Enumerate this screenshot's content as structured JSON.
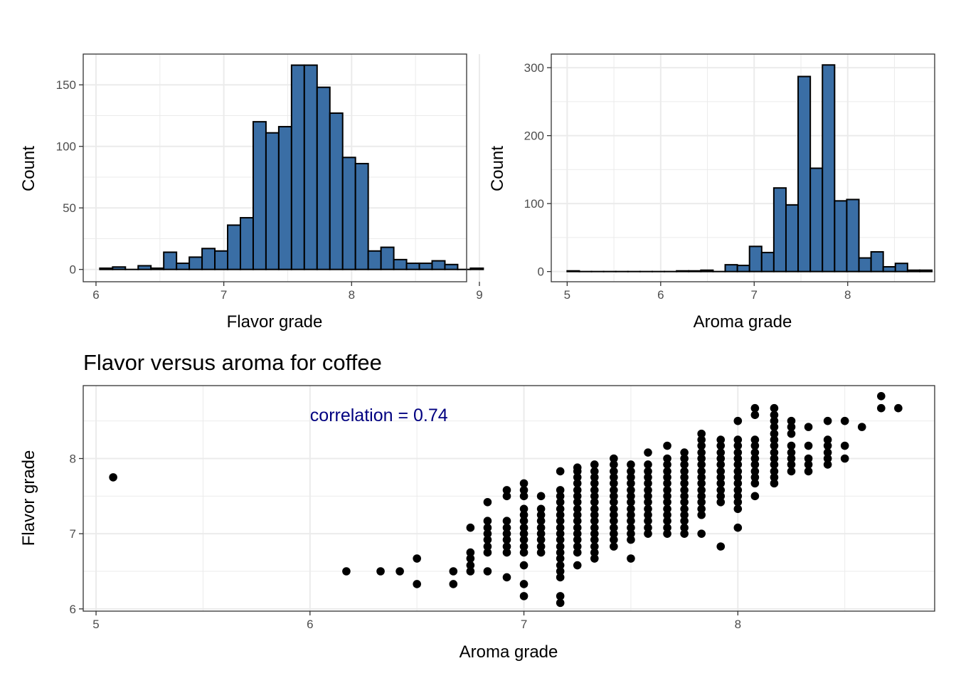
{
  "chart_data": [
    {
      "type": "bar",
      "subtype": "histogram",
      "title": "",
      "xlabel": "Flavor grade",
      "ylabel": "Count",
      "xlim": [
        5.9,
        8.9
      ],
      "ylim": [
        -10,
        175
      ],
      "xticks": [
        6,
        7,
        8,
        9
      ],
      "yticks": [
        0,
        50,
        100,
        150
      ],
      "grid": true,
      "fill_color": "#3a6ea5",
      "edge_color": "#000000",
      "bins": [
        {
          "x0": 6.03,
          "x1": 6.13,
          "count": 1
        },
        {
          "x0": 6.13,
          "x1": 6.23,
          "count": 2
        },
        {
          "x0": 6.23,
          "x1": 6.33,
          "count": 0
        },
        {
          "x0": 6.33,
          "x1": 6.43,
          "count": 3
        },
        {
          "x0": 6.43,
          "x1": 6.53,
          "count": 1
        },
        {
          "x0": 6.53,
          "x1": 6.63,
          "count": 14
        },
        {
          "x0": 6.63,
          "x1": 6.73,
          "count": 5
        },
        {
          "x0": 6.73,
          "x1": 6.83,
          "count": 10
        },
        {
          "x0": 6.83,
          "x1": 6.93,
          "count": 17
        },
        {
          "x0": 6.93,
          "x1": 7.03,
          "count": 15
        },
        {
          "x0": 7.03,
          "x1": 7.13,
          "count": 36
        },
        {
          "x0": 7.13,
          "x1": 7.23,
          "count": 42
        },
        {
          "x0": 7.23,
          "x1": 7.33,
          "count": 120
        },
        {
          "x0": 7.33,
          "x1": 7.43,
          "count": 111
        },
        {
          "x0": 7.43,
          "x1": 7.53,
          "count": 116
        },
        {
          "x0": 7.53,
          "x1": 7.63,
          "count": 166
        },
        {
          "x0": 7.63,
          "x1": 7.73,
          "count": 166
        },
        {
          "x0": 7.73,
          "x1": 7.83,
          "count": 148
        },
        {
          "x0": 7.83,
          "x1": 7.93,
          "count": 127
        },
        {
          "x0": 7.93,
          "x1": 8.03,
          "count": 91
        },
        {
          "x0": 8.03,
          "x1": 8.13,
          "count": 86
        },
        {
          "x0": 8.13,
          "x1": 8.23,
          "count": 15
        },
        {
          "x0": 8.23,
          "x1": 8.33,
          "count": 18
        },
        {
          "x0": 8.33,
          "x1": 8.43,
          "count": 8
        },
        {
          "x0": 8.43,
          "x1": 8.53,
          "count": 5
        },
        {
          "x0": 8.53,
          "x1": 8.63,
          "count": 5
        },
        {
          "x0": 8.63,
          "x1": 8.73,
          "count": 7
        },
        {
          "x0": 8.73,
          "x1": 8.83,
          "count": 4
        },
        {
          "x0": 8.83,
          "x1": 8.93,
          "count": 0
        },
        {
          "x0": 8.93,
          "x1": 9.03,
          "count": 1
        }
      ]
    },
    {
      "type": "bar",
      "subtype": "histogram",
      "title": "",
      "xlabel": "Aroma grade",
      "ylabel": "Count",
      "xlim": [
        4.83,
        8.93
      ],
      "ylim": [
        -15,
        320
      ],
      "xticks": [
        5,
        6,
        7,
        8
      ],
      "yticks": [
        0,
        100,
        200,
        300
      ],
      "grid": true,
      "fill_color": "#3a6ea5",
      "edge_color": "#000000",
      "bins": [
        {
          "x0": 5.0,
          "x1": 5.13,
          "count": 1
        },
        {
          "x0": 5.13,
          "x1": 5.26,
          "count": 0
        },
        {
          "x0": 5.26,
          "x1": 5.39,
          "count": 0
        },
        {
          "x0": 5.39,
          "x1": 5.52,
          "count": 0
        },
        {
          "x0": 5.52,
          "x1": 5.65,
          "count": 0
        },
        {
          "x0": 5.65,
          "x1": 5.78,
          "count": 0
        },
        {
          "x0": 5.78,
          "x1": 5.91,
          "count": 0
        },
        {
          "x0": 5.91,
          "x1": 6.04,
          "count": 0
        },
        {
          "x0": 6.04,
          "x1": 6.17,
          "count": 0
        },
        {
          "x0": 6.17,
          "x1": 6.3,
          "count": 1
        },
        {
          "x0": 6.3,
          "x1": 6.43,
          "count": 1
        },
        {
          "x0": 6.43,
          "x1": 6.56,
          "count": 2
        },
        {
          "x0": 6.56,
          "x1": 6.69,
          "count": 0
        },
        {
          "x0": 6.69,
          "x1": 6.82,
          "count": 10
        },
        {
          "x0": 6.82,
          "x1": 6.95,
          "count": 9
        },
        {
          "x0": 6.95,
          "x1": 7.08,
          "count": 37
        },
        {
          "x0": 7.08,
          "x1": 7.21,
          "count": 28
        },
        {
          "x0": 7.21,
          "x1": 7.34,
          "count": 123
        },
        {
          "x0": 7.34,
          "x1": 7.47,
          "count": 98
        },
        {
          "x0": 7.47,
          "x1": 7.6,
          "count": 287
        },
        {
          "x0": 7.6,
          "x1": 7.73,
          "count": 152
        },
        {
          "x0": 7.73,
          "x1": 7.86,
          "count": 304
        },
        {
          "x0": 7.86,
          "x1": 7.99,
          "count": 104
        },
        {
          "x0": 7.99,
          "x1": 8.12,
          "count": 106
        },
        {
          "x0": 8.12,
          "x1": 8.25,
          "count": 20
        },
        {
          "x0": 8.25,
          "x1": 8.38,
          "count": 29
        },
        {
          "x0": 8.38,
          "x1": 8.51,
          "count": 7
        },
        {
          "x0": 8.51,
          "x1": 8.64,
          "count": 12
        },
        {
          "x0": 8.64,
          "x1": 8.77,
          "count": 2
        },
        {
          "x0": 8.77,
          "x1": 8.9,
          "count": 2
        }
      ]
    },
    {
      "type": "scatter",
      "title": "Flavor versus aroma for coffee",
      "xlabel": "Aroma grade",
      "ylabel": "Flavor grade",
      "xlim": [
        4.94,
        8.92
      ],
      "ylim": [
        5.97,
        8.97
      ],
      "xticks": [
        5,
        6,
        7,
        8
      ],
      "yticks": [
        6,
        7,
        8
      ],
      "grid": true,
      "point_color": "#000000",
      "annotation": {
        "text": "correlation = 0.74",
        "x": 6.0,
        "y": 8.58,
        "color": "#000080"
      },
      "grid_x": [
        5.0,
        5.08,
        5.17,
        5.25,
        5.33,
        5.42,
        5.5,
        5.58,
        5.67,
        5.75,
        5.83,
        5.92,
        6.0,
        6.08,
        6.17,
        6.25,
        6.33,
        6.42,
        6.5,
        6.58,
        6.67,
        6.75,
        6.83,
        6.92,
        7.0,
        7.08,
        7.17,
        7.25,
        7.33,
        7.42,
        7.5,
        7.58,
        7.67,
        7.75,
        7.83,
        7.92,
        8.0,
        8.08,
        8.17,
        8.25,
        8.33,
        8.42,
        8.5,
        8.58,
        8.67,
        8.75
      ],
      "grid_y": [
        6.0,
        6.08,
        6.17,
        6.25,
        6.33,
        6.42,
        6.5,
        6.58,
        6.67,
        6.75,
        6.83,
        6.92,
        7.0,
        7.08,
        7.17,
        7.25,
        7.33,
        7.42,
        7.5,
        7.58,
        7.67,
        7.75,
        7.83,
        7.92,
        8.0,
        8.08,
        8.17,
        8.25,
        8.33,
        8.42,
        8.5,
        8.58,
        8.67,
        8.75,
        8.83
      ],
      "columns": [
        {
          "x": 5.08,
          "y": [
            7.75
          ]
        },
        {
          "x": 6.17,
          "y": [
            6.5
          ]
        },
        {
          "x": 6.33,
          "y": [
            6.5
          ]
        },
        {
          "x": 6.42,
          "y": [
            6.5
          ]
        },
        {
          "x": 6.5,
          "y": [
            6.33,
            6.67
          ]
        },
        {
          "x": 6.67,
          "y": [
            6.33,
            6.5
          ]
        },
        {
          "x": 6.75,
          "y": [
            6.5,
            6.58,
            6.67,
            6.75,
            7.08
          ]
        },
        {
          "x": 6.83,
          "y": [
            6.5,
            6.75,
            6.83,
            6.92,
            7.0,
            7.08,
            7.17,
            7.42
          ]
        },
        {
          "x": 6.92,
          "y": [
            6.42,
            6.75,
            6.83,
            6.92,
            7.0,
            7.08,
            7.17,
            7.5,
            7.58
          ]
        },
        {
          "x": 7.0,
          "y": [
            6.17,
            6.33,
            6.58,
            6.75,
            6.83,
            6.92,
            7.0,
            7.08,
            7.17,
            7.25,
            7.33,
            7.5,
            7.58,
            7.67
          ]
        },
        {
          "x": 7.08,
          "y": [
            6.75,
            6.83,
            6.92,
            7.0,
            7.08,
            7.17,
            7.25,
            7.33,
            7.5
          ]
        },
        {
          "x": 7.17,
          "y": [
            6.08,
            6.17,
            6.42,
            6.5,
            6.58,
            6.67,
            6.75,
            6.83,
            6.92,
            7.0,
            7.08,
            7.17,
            7.25,
            7.33,
            7.42,
            7.5,
            7.58,
            7.83
          ]
        },
        {
          "x": 7.25,
          "y": [
            6.58,
            6.75,
            6.83,
            6.92,
            7.0,
            7.08,
            7.17,
            7.25,
            7.33,
            7.42,
            7.5,
            7.58,
            7.67,
            7.75,
            7.83,
            7.88
          ]
        },
        {
          "x": 7.33,
          "y": [
            6.67,
            6.75,
            6.83,
            6.92,
            7.0,
            7.08,
            7.17,
            7.25,
            7.33,
            7.42,
            7.5,
            7.58,
            7.67,
            7.75,
            7.83,
            7.92
          ]
        },
        {
          "x": 7.42,
          "y": [
            6.83,
            6.92,
            7.0,
            7.08,
            7.17,
            7.25,
            7.33,
            7.42,
            7.5,
            7.58,
            7.67,
            7.75,
            7.83,
            7.92,
            8.0
          ]
        },
        {
          "x": 7.5,
          "y": [
            6.67,
            6.92,
            7.0,
            7.08,
            7.17,
            7.25,
            7.33,
            7.42,
            7.5,
            7.58,
            7.67,
            7.75,
            7.83,
            7.92
          ]
        },
        {
          "x": 7.58,
          "y": [
            7.0,
            7.08,
            7.17,
            7.25,
            7.33,
            7.42,
            7.5,
            7.58,
            7.67,
            7.75,
            7.83,
            7.92,
            8.08
          ]
        },
        {
          "x": 7.67,
          "y": [
            7.0,
            7.08,
            7.17,
            7.25,
            7.33,
            7.42,
            7.5,
            7.58,
            7.67,
            7.75,
            7.83,
            7.92,
            8.0,
            8.17
          ]
        },
        {
          "x": 7.75,
          "y": [
            7.0,
            7.08,
            7.17,
            7.25,
            7.33,
            7.42,
            7.5,
            7.58,
            7.67,
            7.75,
            7.83,
            7.92,
            8.0,
            8.08
          ]
        },
        {
          "x": 7.83,
          "y": [
            7.0,
            7.25,
            7.33,
            7.42,
            7.5,
            7.58,
            7.67,
            7.75,
            7.83,
            7.92,
            8.0,
            8.08,
            8.17,
            8.25,
            8.33
          ]
        },
        {
          "x": 7.92,
          "y": [
            6.83,
            7.42,
            7.5,
            7.58,
            7.67,
            7.75,
            7.83,
            7.92,
            8.0,
            8.08,
            8.17,
            8.25
          ]
        },
        {
          "x": 8.0,
          "y": [
            7.08,
            7.33,
            7.42,
            7.5,
            7.58,
            7.67,
            7.75,
            7.83,
            7.92,
            8.0,
            8.08,
            8.17,
            8.25,
            8.5
          ]
        },
        {
          "x": 8.08,
          "y": [
            7.5,
            7.67,
            7.75,
            7.83,
            7.92,
            8.0,
            8.08,
            8.17,
            8.25,
            8.58,
            8.67
          ]
        },
        {
          "x": 8.17,
          "y": [
            7.67,
            7.75,
            7.83,
            7.92,
            8.0,
            8.08,
            8.17,
            8.25,
            8.33,
            8.42,
            8.5,
            8.58,
            8.67
          ]
        },
        {
          "x": 8.25,
          "y": [
            7.83,
            7.92,
            8.0,
            8.08,
            8.17,
            8.33,
            8.42,
            8.5
          ]
        },
        {
          "x": 8.33,
          "y": [
            7.83,
            7.92,
            8.0,
            8.17,
            8.42
          ]
        },
        {
          "x": 8.42,
          "y": [
            7.92,
            8.0,
            8.08,
            8.17,
            8.25,
            8.5
          ]
        },
        {
          "x": 8.5,
          "y": [
            8.0,
            8.17,
            8.5
          ]
        },
        {
          "x": 8.58,
          "y": [
            8.42
          ]
        },
        {
          "x": 8.67,
          "y": [
            8.67,
            8.83
          ]
        },
        {
          "x": 8.75,
          "y": [
            8.67
          ]
        }
      ]
    }
  ]
}
